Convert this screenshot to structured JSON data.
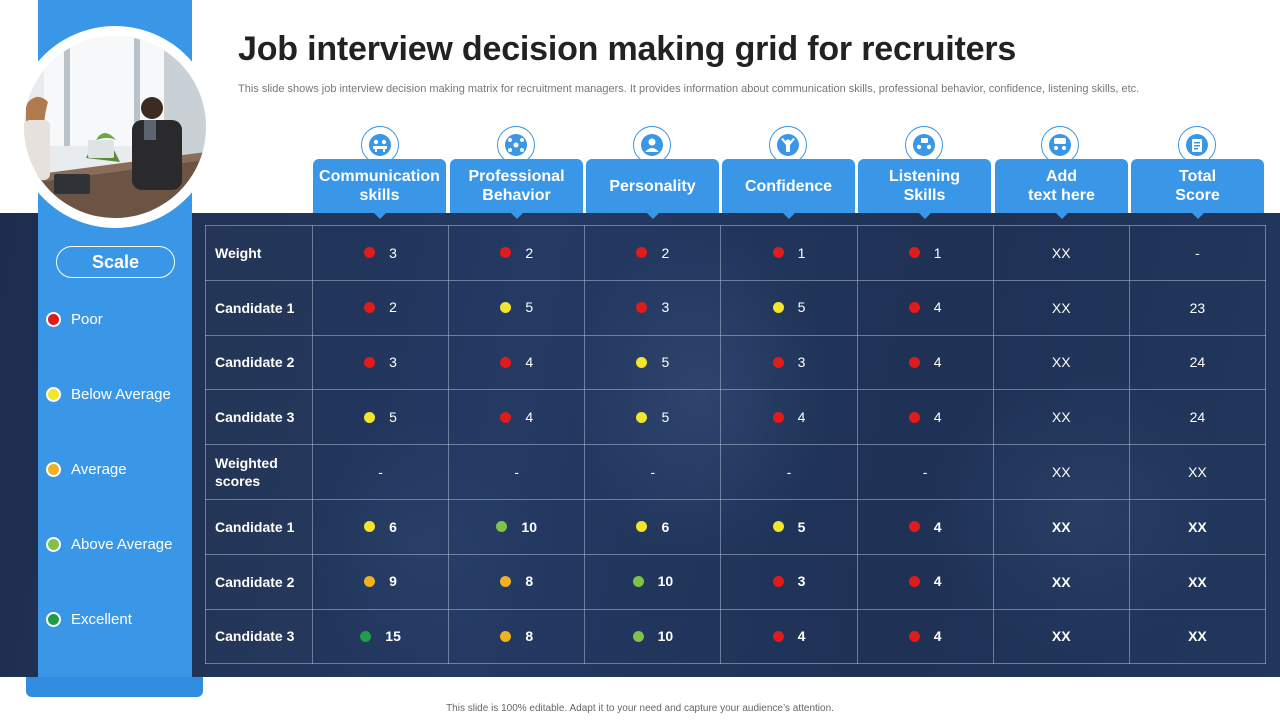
{
  "title": "Job interview decision making grid for recruiters",
  "subtitle": "This slide shows job interview decision making matrix for recruitment managers. It provides information about communication skills, professional behavior, confidence, listening skills, etc.",
  "footer": "This slide is 100% editable. Adapt it to your need and capture your audience’s attention.",
  "scale": {
    "label": "Scale",
    "items": [
      {
        "label": "Poor",
        "color": "#e01b1b"
      },
      {
        "label": "Below Average",
        "color": "#f2e52b"
      },
      {
        "label": "Average",
        "color": "#f0b21e"
      },
      {
        "label": "Above Average",
        "color": "#7ec24a"
      },
      {
        "label": "Excellent",
        "color": "#1e9e48"
      }
    ]
  },
  "columns": [
    {
      "label": "Communication\nskills",
      "icon": "meeting-icon"
    },
    {
      "label": "Professional\nBehavior",
      "icon": "people-network-icon"
    },
    {
      "label": "Personality",
      "icon": "person-icon"
    },
    {
      "label": "Confidence",
      "icon": "cheering-person-icon"
    },
    {
      "label": "Listening\nSkills",
      "icon": "discussion-icon"
    },
    {
      "label": "Add\ntext here",
      "icon": "group-chat-icon"
    },
    {
      "label": "Total\nScore",
      "icon": "clipboard-icon"
    }
  ],
  "rows": [
    {
      "label": "Weight",
      "bold": false,
      "cells": [
        {
          "v": "3",
          "c": "#e01b1b"
        },
        {
          "v": "2",
          "c": "#e01b1b"
        },
        {
          "v": "2",
          "c": "#e01b1b"
        },
        {
          "v": "1",
          "c": "#e01b1b"
        },
        {
          "v": "1",
          "c": "#e01b1b"
        },
        {
          "v": "XX"
        },
        {
          "v": "-"
        }
      ]
    },
    {
      "label": "Candidate 1",
      "bold": false,
      "cells": [
        {
          "v": "2",
          "c": "#e01b1b"
        },
        {
          "v": "5",
          "c": "#f2e52b"
        },
        {
          "v": "3",
          "c": "#e01b1b"
        },
        {
          "v": "5",
          "c": "#f2e52b"
        },
        {
          "v": "4",
          "c": "#e01b1b"
        },
        {
          "v": "XX"
        },
        {
          "v": "23"
        }
      ]
    },
    {
      "label": "Candidate 2",
      "bold": false,
      "cells": [
        {
          "v": "3",
          "c": "#e01b1b"
        },
        {
          "v": "4",
          "c": "#e01b1b"
        },
        {
          "v": "5",
          "c": "#f2e52b"
        },
        {
          "v": "3",
          "c": "#e01b1b"
        },
        {
          "v": "4",
          "c": "#e01b1b"
        },
        {
          "v": "XX"
        },
        {
          "v": "24"
        }
      ]
    },
    {
      "label": "Candidate 3",
      "bold": false,
      "cells": [
        {
          "v": "5",
          "c": "#f2e52b"
        },
        {
          "v": "4",
          "c": "#e01b1b"
        },
        {
          "v": "5",
          "c": "#f2e52b"
        },
        {
          "v": "4",
          "c": "#e01b1b"
        },
        {
          "v": "4",
          "c": "#e01b1b"
        },
        {
          "v": "XX"
        },
        {
          "v": "24"
        }
      ]
    },
    {
      "label": "Weighted\nscores",
      "bold": false,
      "cells": [
        {
          "v": "-"
        },
        {
          "v": "-"
        },
        {
          "v": "-"
        },
        {
          "v": "-"
        },
        {
          "v": "-"
        },
        {
          "v": "XX"
        },
        {
          "v": "XX"
        }
      ]
    },
    {
      "label": "Candidate 1",
      "bold": true,
      "cells": [
        {
          "v": "6",
          "c": "#f2e52b"
        },
        {
          "v": "10",
          "c": "#7ec24a"
        },
        {
          "v": "6",
          "c": "#f2e52b"
        },
        {
          "v": "5",
          "c": "#f2e52b"
        },
        {
          "v": "4",
          "c": "#e01b1b"
        },
        {
          "v": "XX"
        },
        {
          "v": "XX"
        }
      ]
    },
    {
      "label": "Candidate 2",
      "bold": true,
      "cells": [
        {
          "v": "9",
          "c": "#f0b21e"
        },
        {
          "v": "8",
          "c": "#f0b21e"
        },
        {
          "v": "10",
          "c": "#7ec24a"
        },
        {
          "v": "3",
          "c": "#e01b1b"
        },
        {
          "v": "4",
          "c": "#e01b1b"
        },
        {
          "v": "XX"
        },
        {
          "v": "XX"
        }
      ]
    },
    {
      "label": "Candidate 3",
      "bold": true,
      "cells": [
        {
          "v": "15",
          "c": "#1e9e48"
        },
        {
          "v": "8",
          "c": "#f0b21e"
        },
        {
          "v": "10",
          "c": "#7ec24a"
        },
        {
          "v": "4",
          "c": "#e01b1b"
        },
        {
          "v": "4",
          "c": "#e01b1b"
        },
        {
          "v": "XX"
        },
        {
          "v": "XX"
        }
      ]
    }
  ]
}
